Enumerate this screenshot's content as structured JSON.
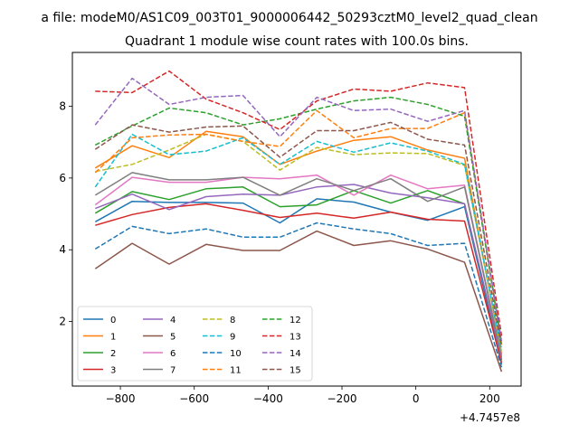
{
  "suptitle": "a file: modeM0/AS1C09_003T01_9000006442_50293cztM0_level2_quad_clean",
  "chart_data": {
    "type": "line",
    "title": "Quadrant 1 module wise count rates with 100.0s bins.",
    "xlabel": "",
    "ylabel": "",
    "x_offset_label": "+4.7457e8",
    "xlim": [
      -930,
      285
    ],
    "ylim": [
      0.2,
      9.5
    ],
    "xticks": [
      -800,
      -600,
      -400,
      -200,
      0,
      200
    ],
    "xtick_labels": [
      "−800",
      "−600",
      "−400",
      "−200",
      "0",
      "200"
    ],
    "yticks": [
      2,
      4,
      6,
      8
    ],
    "ytick_labels": [
      "2",
      "4",
      "6",
      "8"
    ],
    "legend_position": "lower-left",
    "x": [
      -868,
      -768,
      -668,
      -568,
      -468,
      -368,
      -268,
      -168,
      -68,
      32,
      132,
      232
    ],
    "series": [
      {
        "name": "0",
        "color": "#1f77b4",
        "dash": "solid",
        "values": [
          4.78,
          5.35,
          5.32,
          5.32,
          5.3,
          4.75,
          5.42,
          5.33,
          5.05,
          4.82,
          5.2,
          0.8
        ]
      },
      {
        "name": "1",
        "color": "#ff7f0e",
        "dash": "solid",
        "values": [
          6.28,
          6.9,
          6.57,
          7.3,
          7.15,
          6.38,
          6.75,
          7.05,
          7.15,
          6.78,
          6.55,
          1.1
        ]
      },
      {
        "name": "2",
        "color": "#2ca02c",
        "dash": "solid",
        "values": [
          5.02,
          5.62,
          5.4,
          5.7,
          5.75,
          5.2,
          5.25,
          5.65,
          5.3,
          5.65,
          5.28,
          0.92
        ]
      },
      {
        "name": "3",
        "color": "#d62728",
        "dash": "solid",
        "values": [
          4.68,
          4.98,
          5.18,
          5.28,
          5.1,
          4.9,
          5.02,
          4.88,
          5.05,
          4.85,
          4.8,
          0.85
        ]
      },
      {
        "name": "4",
        "color": "#9467bd",
        "dash": "solid",
        "values": [
          5.15,
          5.55,
          5.12,
          5.48,
          5.55,
          5.52,
          5.75,
          5.82,
          5.58,
          5.45,
          5.28,
          0.95
        ]
      },
      {
        "name": "5",
        "color": "#8c564b",
        "dash": "solid",
        "values": [
          3.47,
          4.18,
          3.6,
          4.15,
          3.98,
          3.98,
          4.52,
          4.12,
          4.25,
          4.02,
          3.65,
          0.6
        ]
      },
      {
        "name": "6",
        "color": "#e377c2",
        "dash": "solid",
        "values": [
          5.25,
          6.02,
          5.88,
          5.88,
          6.02,
          5.98,
          6.08,
          5.52,
          6.08,
          5.7,
          5.8,
          1.05
        ]
      },
      {
        "name": "7",
        "color": "#7f7f7f",
        "dash": "solid",
        "values": [
          5.52,
          6.15,
          5.95,
          5.95,
          6.02,
          5.52,
          5.98,
          5.65,
          5.98,
          5.35,
          5.75,
          1.0
        ]
      },
      {
        "name": "8",
        "color": "#bcbd22",
        "dash": "dashed",
        "values": [
          6.18,
          6.38,
          6.78,
          7.22,
          7.02,
          6.22,
          6.85,
          6.65,
          6.7,
          6.68,
          6.35,
          1.15
        ]
      },
      {
        "name": "9",
        "color": "#17becf",
        "dash": "dashed",
        "values": [
          5.75,
          7.22,
          6.65,
          6.75,
          7.12,
          6.38,
          7.02,
          6.72,
          6.98,
          6.75,
          6.38,
          1.2
        ]
      },
      {
        "name": "10",
        "color": "#1f77b4",
        "dash": "dashed",
        "values": [
          4.02,
          4.65,
          4.45,
          4.58,
          4.35,
          4.35,
          4.75,
          4.58,
          4.45,
          4.12,
          4.18,
          0.72
        ]
      },
      {
        "name": "11",
        "color": "#ff7f0e",
        "dash": "dashed",
        "values": [
          6.15,
          7.12,
          7.2,
          7.22,
          7.02,
          6.88,
          7.88,
          7.12,
          7.38,
          7.38,
          7.82,
          1.35
        ]
      },
      {
        "name": "12",
        "color": "#2ca02c",
        "dash": "dashed",
        "values": [
          6.92,
          7.45,
          7.95,
          7.82,
          7.48,
          7.65,
          7.92,
          8.15,
          8.25,
          8.05,
          7.72,
          1.4
        ]
      },
      {
        "name": "13",
        "color": "#d62728",
        "dash": "dashed",
        "values": [
          8.42,
          8.38,
          8.98,
          8.2,
          7.82,
          7.35,
          8.15,
          8.48,
          8.42,
          8.65,
          8.52,
          1.6
        ]
      },
      {
        "name": "14",
        "color": "#9467bd",
        "dash": "dashed",
        "values": [
          7.48,
          8.78,
          8.05,
          8.25,
          8.3,
          7.15,
          8.25,
          7.88,
          7.92,
          7.58,
          7.88,
          1.45
        ]
      },
      {
        "name": "15",
        "color": "#8c564b",
        "dash": "dashed",
        "values": [
          6.8,
          7.48,
          7.28,
          7.42,
          7.45,
          6.58,
          7.32,
          7.32,
          7.55,
          7.08,
          6.92,
          1.3
        ]
      }
    ]
  }
}
